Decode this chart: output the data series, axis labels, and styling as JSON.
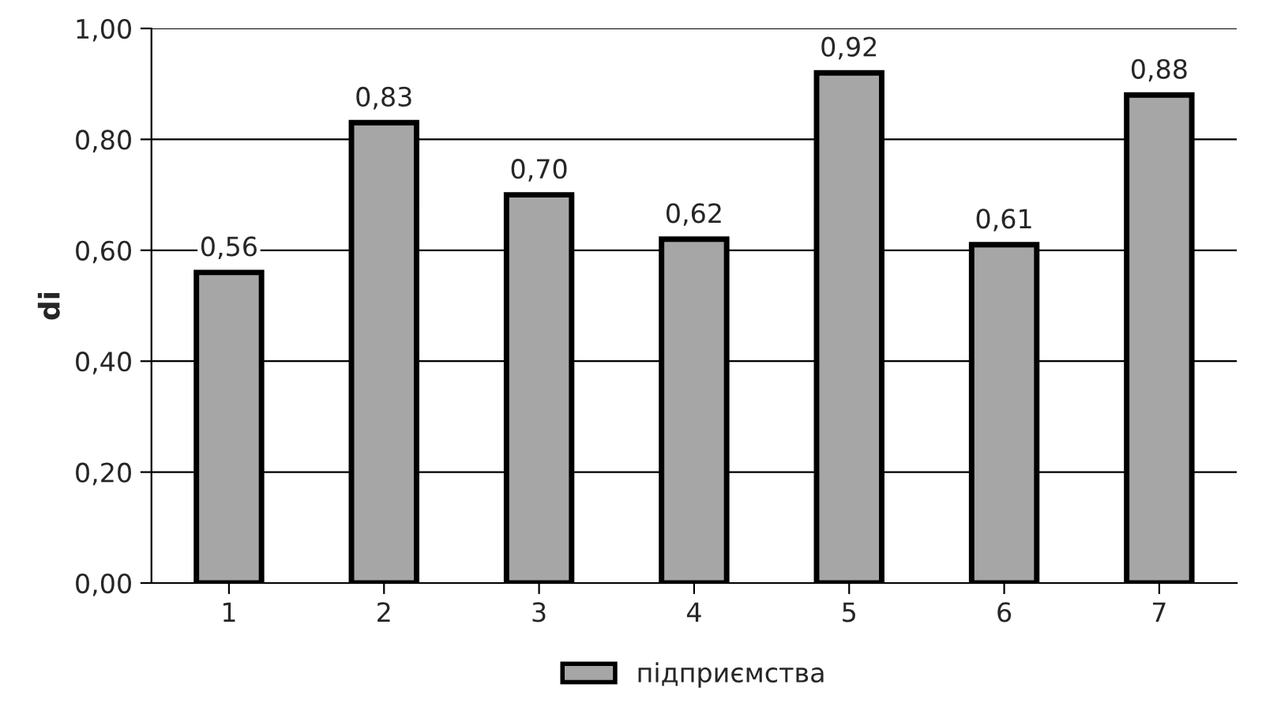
{
  "chart_data": {
    "type": "bar",
    "ylabel": "di",
    "categories": [
      "1",
      "2",
      "3",
      "4",
      "5",
      "6",
      "7"
    ],
    "series": [
      {
        "name": "підприємства",
        "color": "#a6a6a6",
        "values": [
          0.56,
          0.83,
          0.7,
          0.62,
          0.92,
          0.61,
          0.88
        ],
        "value_labels": [
          "0,56",
          "0,83",
          "0,70",
          "0,62",
          "0,92",
          "0,61",
          "0,88"
        ]
      }
    ],
    "ylim": [
      0,
      1
    ],
    "yticks": [
      {
        "value": 0,
        "label": "0,00"
      },
      {
        "value": 0.2,
        "label": "0,20"
      },
      {
        "value": 0.4,
        "label": "0,40"
      },
      {
        "value": 0.6,
        "label": "0,60"
      },
      {
        "value": 0.8,
        "label": "0,80"
      },
      {
        "value": 1,
        "label": "1,00"
      }
    ],
    "grid": "y",
    "legend": "bottom"
  }
}
